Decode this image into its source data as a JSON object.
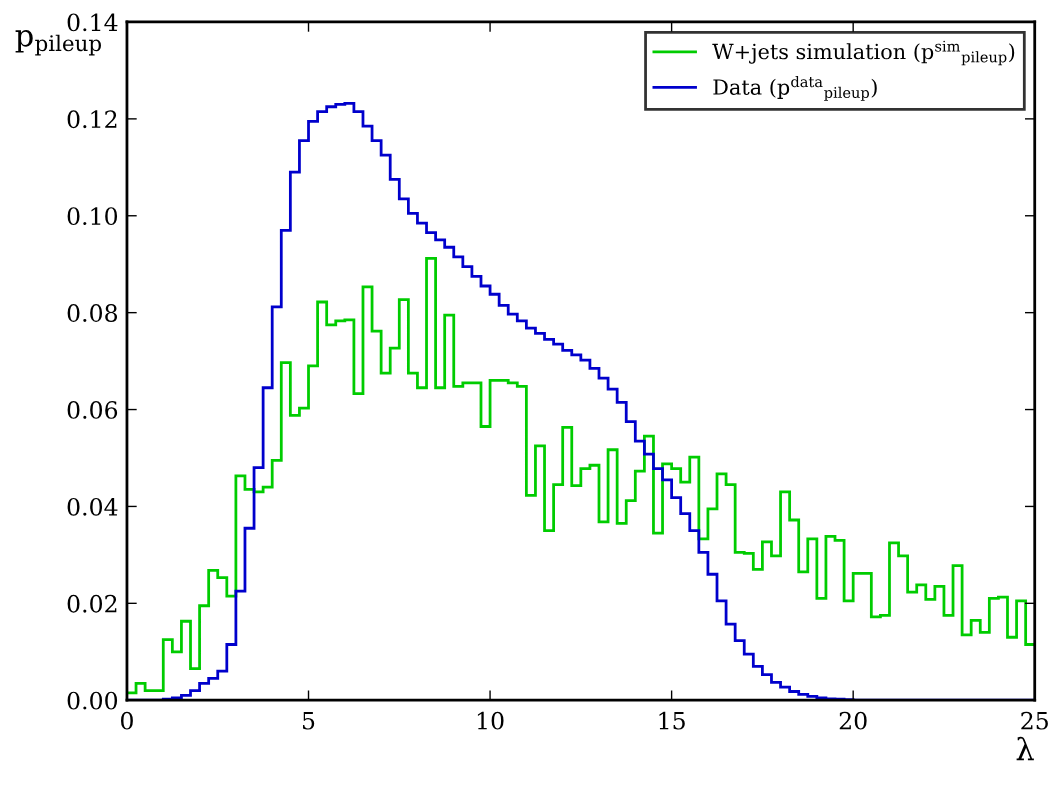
{
  "chart_data": {
    "type": "histogram",
    "xlabel": "λ",
    "ylabel": "p$_{pileup}$",
    "bins": [
      0,
      0.25,
      0.5,
      0.75,
      1,
      1.25,
      1.5,
      1.75,
      2,
      2.25,
      2.5,
      2.75,
      3,
      3.25,
      3.5,
      3.75,
      4,
      4.25,
      4.5,
      4.75,
      5,
      5.25,
      5.5,
      5.75,
      6,
      6.25,
      6.5,
      6.75,
      7,
      7.25,
      7.5,
      7.75,
      8,
      8.25,
      8.5,
      8.75,
      9,
      9.25,
      9.5,
      9.75,
      10,
      10.25,
      10.5,
      10.75,
      11,
      11.25,
      11.5,
      11.75,
      12,
      12.25,
      12.5,
      12.75,
      13,
      13.25,
      13.5,
      13.75,
      14,
      14.25,
      14.5,
      14.75,
      15,
      15.25,
      15.5,
      15.75,
      16,
      16.25,
      16.5,
      16.75,
      17,
      17.25,
      17.5,
      17.75,
      18,
      18.25,
      18.5,
      18.75,
      19,
      19.25,
      19.5,
      19.75,
      20,
      20.25,
      20.5,
      20.75,
      21,
      21.25,
      21.5,
      21.75,
      22,
      22.25,
      22.5,
      22.75,
      23,
      23.25,
      23.5,
      23.75,
      24,
      24.25,
      24.5,
      24.75,
      25
    ],
    "series": [
      {
        "name": "W+jets simulation (p$^{sim}$$_{pileup}$)",
        "color": "#00cc00",
        "values": [
          0.0015,
          0.0035,
          0.002,
          0.002,
          0.0125,
          0.01,
          0.0163,
          0.0065,
          0.0195,
          0.0268,
          0.0253,
          0.0215,
          0.0463,
          0.0435,
          0.043,
          0.044,
          0.0495,
          0.0697,
          0.0588,
          0.0603,
          0.069,
          0.0822,
          0.0775,
          0.0783,
          0.0785,
          0.0633,
          0.0853,
          0.0762,
          0.0675,
          0.0727,
          0.0827,
          0.0675,
          0.0645,
          0.0912,
          0.0645,
          0.0795,
          0.0648,
          0.0655,
          0.0655,
          0.0565,
          0.066,
          0.066,
          0.0655,
          0.0648,
          0.0423,
          0.0525,
          0.035,
          0.0445,
          0.0563,
          0.0443,
          0.0478,
          0.0485,
          0.0368,
          0.0517,
          0.0365,
          0.0412,
          0.0473,
          0.0545,
          0.0345,
          0.0488,
          0.0478,
          0.045,
          0.0502,
          0.0333,
          0.0395,
          0.0467,
          0.0445,
          0.0305,
          0.0303,
          0.027,
          0.0327,
          0.0298,
          0.043,
          0.0372,
          0.0265,
          0.0333,
          0.021,
          0.0338,
          0.033,
          0.0205,
          0.0262,
          0.0262,
          0.0172,
          0.0175,
          0.0325,
          0.0298,
          0.0223,
          0.0238,
          0.0208,
          0.0235,
          0.0175,
          0.0278,
          0.0135,
          0.0165,
          0.014,
          0.021,
          0.0213,
          0.013,
          0.0205,
          0.0115
        ]
      },
      {
        "name": "Data (p$^{data}$$_{pileup}$)",
        "color": "#0000cc",
        "values": [
          0,
          0,
          0,
          0,
          0.0002,
          0.0005,
          0.001,
          0.002,
          0.0035,
          0.0045,
          0.006,
          0.0115,
          0.0225,
          0.0355,
          0.048,
          0.0645,
          0.0812,
          0.097,
          0.109,
          0.1155,
          0.1195,
          0.1215,
          0.1225,
          0.123,
          0.1232,
          0.1215,
          0.1185,
          0.1155,
          0.1125,
          0.1075,
          0.1035,
          0.1005,
          0.0985,
          0.0965,
          0.095,
          0.0935,
          0.0915,
          0.0895,
          0.0875,
          0.0855,
          0.0838,
          0.0815,
          0.0797,
          0.0783,
          0.0768,
          0.0757,
          0.0745,
          0.0735,
          0.0722,
          0.0713,
          0.0702,
          0.0685,
          0.0665,
          0.0642,
          0.0615,
          0.0575,
          0.0535,
          0.0508,
          0.0478,
          0.0455,
          0.0418,
          0.0385,
          0.035,
          0.0305,
          0.026,
          0.0205,
          0.0157,
          0.0123,
          0.0095,
          0.007,
          0.0053,
          0.0037,
          0.0027,
          0.0018,
          0.0012,
          0.0008,
          0.0005,
          0.0003,
          0.0002,
          0.0001,
          0,
          0,
          0,
          0,
          0,
          0,
          0,
          0,
          0,
          0,
          0,
          0,
          0,
          0,
          0,
          0,
          0,
          0,
          0,
          0
        ]
      }
    ],
    "xlim": [
      0,
      25
    ],
    "xticks": [
      0,
      5,
      10,
      15,
      20,
      25
    ],
    "ylim": [
      0,
      0.14
    ],
    "yticks": [
      {
        "value": 0,
        "label": "0.00"
      },
      {
        "value": 0.02,
        "label": "0.02"
      },
      {
        "value": 0.04,
        "label": "0.04"
      },
      {
        "value": 0.06,
        "label": "0.06"
      },
      {
        "value": 0.08,
        "label": "0.08"
      },
      {
        "value": 0.1,
        "label": "0.10"
      },
      {
        "value": 0.12,
        "label": "0.12"
      },
      {
        "value": 0.14,
        "label": "0.14"
      }
    ],
    "legend": "top right",
    "grid": false
  }
}
